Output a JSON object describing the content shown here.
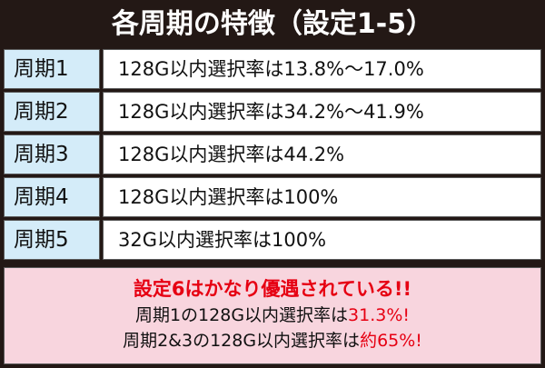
{
  "header": {
    "title": "各周期の特徴（設定1-5）"
  },
  "table": {
    "rows": [
      [
        "周期1",
        "128G以内選択率は13.8%～17.0%"
      ],
      [
        "周期2",
        "128G以内選択率は34.2%～41.9%"
      ],
      [
        "周期3",
        "128G以内選択率は44.2%"
      ],
      [
        "周期4",
        "128G以内選択率は100%"
      ],
      [
        "周期5",
        "32G以内選択率は100%"
      ]
    ]
  },
  "note": {
    "headline": "設定6はかなり優遇されている!!",
    "lines": [
      [
        "周期1の128G以内選択率は",
        "31.3%!"
      ],
      [
        "周期2&3の128G以内選択率は",
        "約65%!"
      ]
    ]
  }
}
